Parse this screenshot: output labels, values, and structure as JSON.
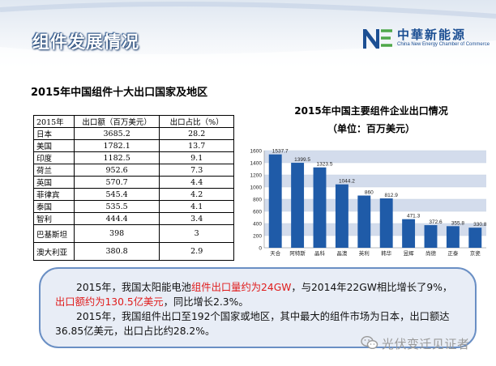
{
  "header": {
    "title": "组件发展情况",
    "logo_cn": "中華新能源",
    "logo_en": "China New Energy Chamber of Commerce"
  },
  "table": {
    "title": "2015年中国组件十大出口国家及地区",
    "headers": [
      "2015年",
      "出口额（百万美元）",
      "出口占比（%）"
    ],
    "rows": [
      [
        "日本",
        "3685.2",
        "28.2"
      ],
      [
        "美国",
        "1782.1",
        "13.7"
      ],
      [
        "印度",
        "1182.5",
        "9.1"
      ],
      [
        "荷兰",
        "952.6",
        "7.3"
      ],
      [
        "英国",
        "570.7",
        "4.4"
      ],
      [
        "菲律宾",
        "545.4",
        "4.2"
      ],
      [
        "泰国",
        "535.5",
        "4.1"
      ],
      [
        "智利",
        "444.4",
        "3.4"
      ],
      [
        "巴基斯坦",
        "398",
        "3"
      ],
      [
        "澳大利亚",
        "380.8",
        "2.9"
      ]
    ]
  },
  "chart_data": {
    "type": "bar",
    "title": "2015年中国主要组件企业出口情况",
    "subtitle": "（单位：百万美元）",
    "categories": [
      "天合",
      "阿特斯",
      "晶科",
      "晶澳",
      "英利",
      "韩华",
      "昱辉",
      "尚德",
      "正泰",
      "京瓷"
    ],
    "values": [
      1537.7,
      1399.5,
      1323.5,
      1044.2,
      860,
      812.9,
      471.3,
      372.6,
      355.8,
      330.8
    ],
    "value_labels": [
      "1537.7",
      "1399.5",
      "1323.5",
      "1044.2",
      "860",
      "812.9",
      "471.3",
      "372.6",
      "355.8",
      "330.8"
    ],
    "ylim": [
      0,
      1600
    ],
    "yticks": [
      "0",
      "200",
      "400",
      "600",
      "800",
      "1000",
      "1200",
      "1400",
      "1600"
    ],
    "bar_color": "#1f5ba8",
    "band_color": "#d3dcec",
    "grid": true
  },
  "note": {
    "p1_a": "2015年，我国太阳能电池",
    "p1_red1": "组件出口量约为24GW",
    "p1_b": "，与2014年22GW相比增长了9%，",
    "p1_red2": "出口额约为130.5亿美元",
    "p1_c": "，同比增长2.3%。",
    "p2": "2015年，我国组件出口至192个国家或地区，其中最大的组件市场为日本，出口额达36.85亿美元，出口占比约28.2%。",
    "highlight_color": "#e01b1b"
  },
  "watermark": {
    "text": "光伏变迁见证者"
  }
}
